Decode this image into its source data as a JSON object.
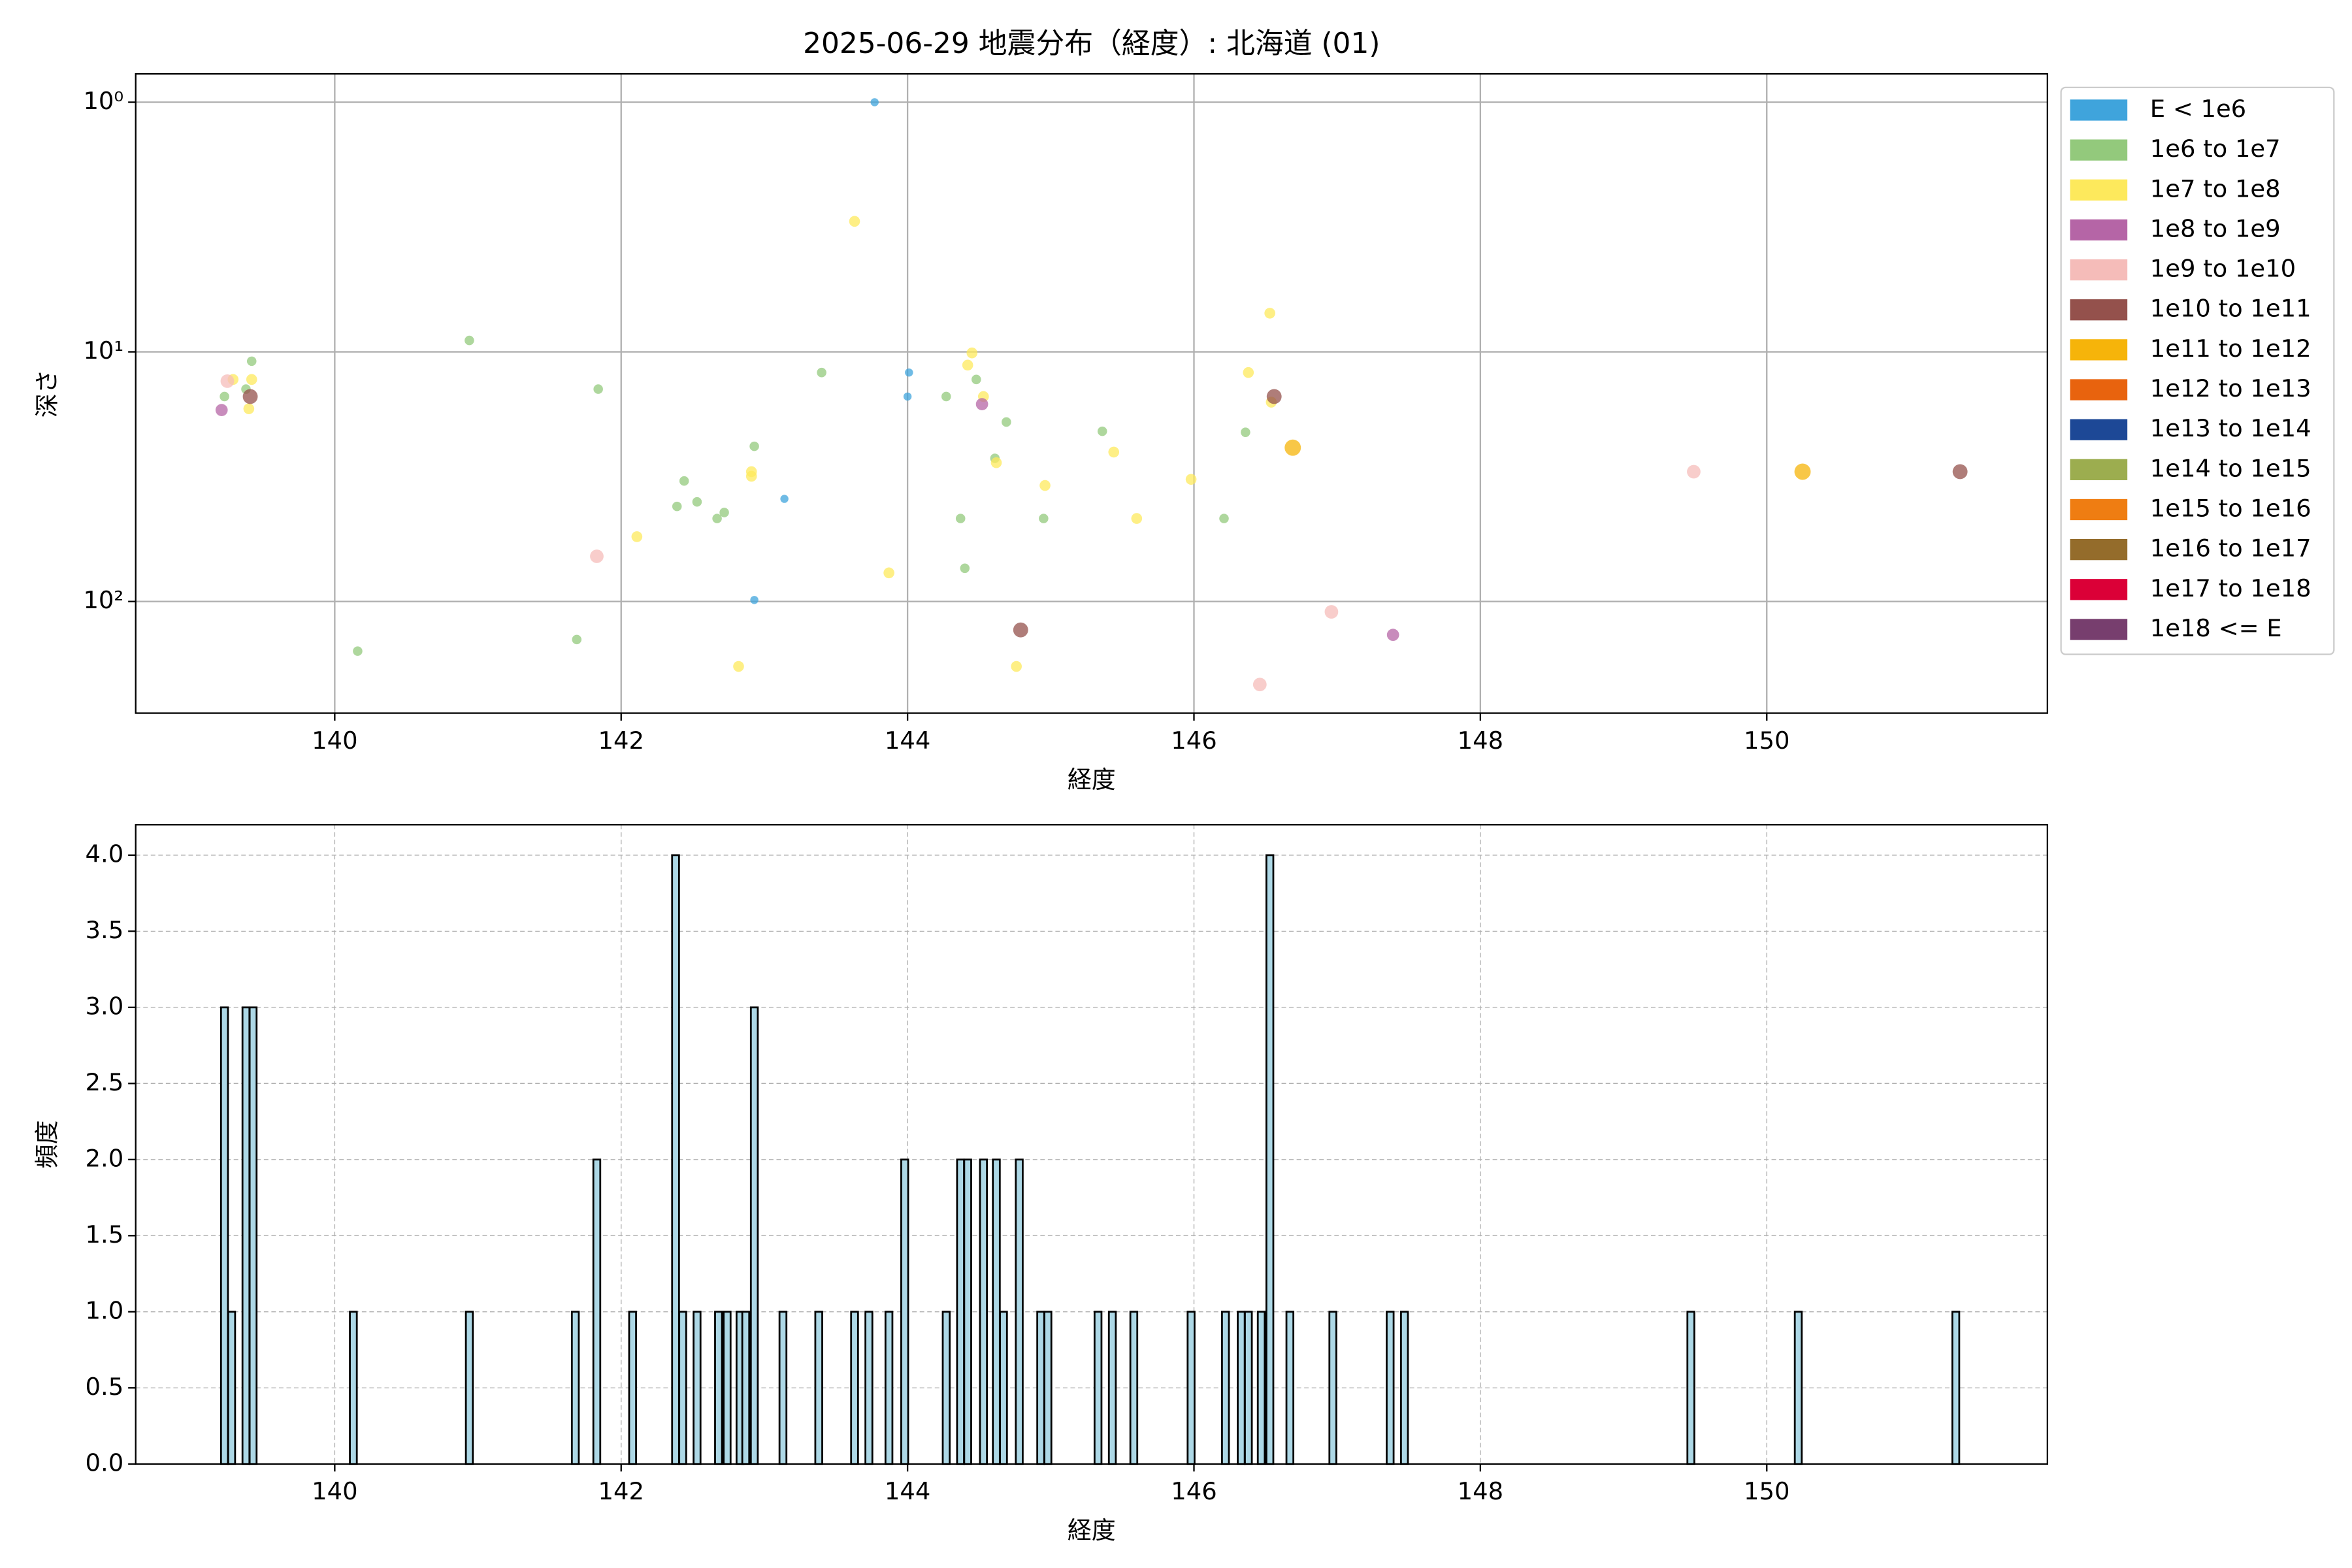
{
  "chart_data": [
    {
      "type": "scatter",
      "title": "2025-06-29 地震分布（経度）: 北海道 (01)",
      "xlabel": "経度",
      "ylabel": "深さ",
      "log_y": true,
      "grid": true,
      "grid_linestyle": "solid",
      "legend": "outside-right",
      "xlim": [
        138.61,
        151.96
      ],
      "xticks": [
        140,
        142,
        144,
        146,
        148,
        150
      ],
      "ylim": [
        280,
        0.77
      ],
      "yticks": [
        {
          "value": 1,
          "label": "10⁰"
        },
        {
          "value": 10,
          "label": "10¹"
        },
        {
          "value": 100,
          "label": "10²"
        }
      ],
      "series": [
        {
          "name": "E < 1e6",
          "color": "#3fa4dc",
          "x": [
            143.77,
            144.01,
            144.0,
            143.14,
            142.93
          ],
          "values": [
            1.0,
            12.1,
            15.1,
            38.8,
            98.6
          ]
        },
        {
          "name": "1e6 to 1e7",
          "color": "#93c97c",
          "x": [
            139.23,
            139.42,
            139.38,
            140.94,
            140.16,
            141.69,
            141.84,
            143.4,
            142.93,
            142.44,
            142.39,
            142.53,
            142.67,
            142.72,
            144.27,
            144.48,
            144.69,
            144.61,
            144.37,
            144.4,
            144.95,
            145.36,
            146.36,
            146.21
          ],
          "values": [
            15.1,
            10.9,
            14.1,
            9.0,
            158,
            142,
            14.1,
            12.1,
            23.9,
            32.9,
            41.6,
            39.9,
            46.5,
            44.0,
            15.1,
            12.9,
            19.1,
            26.7,
            46.5,
            73.6,
            46.5,
            20.8,
            21.0,
            46.5
          ]
        },
        {
          "name": "1e7 to 1e8",
          "color": "#fde95c",
          "x": [
            139.29,
            139.42,
            139.4,
            143.63,
            144.42,
            144.45,
            144.53,
            144.62,
            142.91,
            142.91,
            142.11,
            142.82,
            143.87,
            144.76,
            144.96,
            145.44,
            145.6,
            145.98,
            146.53,
            146.38,
            146.54
          ],
          "values": [
            12.9,
            12.9,
            16.9,
            3.0,
            11.3,
            10.1,
            15.1,
            27.8,
            30.2,
            31.5,
            55.0,
            182,
            76.8,
            182,
            34.3,
            25.2,
            46.5,
            32.4,
            7.0,
            12.1,
            15.9
          ]
        },
        {
          "name": "1e8 to 1e9",
          "color": "#b565a6",
          "x": [
            139.21,
            144.52,
            147.39
          ],
          "values": [
            17.1,
            16.2,
            136
          ]
        },
        {
          "name": "1e9 to 1e10",
          "color": "#f5bcb9",
          "x": [
            139.25,
            141.83,
            146.46,
            146.96,
            149.49
          ],
          "values": [
            13.1,
            65.9,
            215,
            110,
            30.2
          ]
        },
        {
          "name": "1e10 to 1e11",
          "color": "#94514c",
          "x": [
            139.41,
            146.56,
            144.79,
            151.35
          ],
          "values": [
            15.1,
            15.1,
            130,
            30.2
          ]
        },
        {
          "name": "1e11 to 1e12",
          "color": "#f6b40a",
          "x": [
            146.69,
            150.25
          ],
          "values": [
            24.2,
            30.2
          ]
        },
        {
          "name": "1e12 to 1e13",
          "color": "#e8630e",
          "x": [],
          "values": []
        },
        {
          "name": "1e13 to 1e14",
          "color": "#1d4896",
          "x": [],
          "values": []
        },
        {
          "name": "1e14 to 1e15",
          "color": "#9cad4f",
          "x": [],
          "values": []
        },
        {
          "name": "1e15 to 1e16",
          "color": "#ef7d12",
          "x": [],
          "values": []
        },
        {
          "name": "1e16 to 1e17",
          "color": "#946c2b",
          "x": [],
          "values": []
        },
        {
          "name": "1e17 to 1e18",
          "color": "#db0037",
          "x": [],
          "values": []
        },
        {
          "name": "1e18 <= E",
          "color": "#773e6e",
          "x": [],
          "values": []
        }
      ]
    },
    {
      "type": "bar",
      "xlabel": "経度",
      "ylabel": "頻度",
      "color": "#add8e6",
      "edgecolor": "#000000",
      "grid": true,
      "grid_linestyle": "dashed",
      "xlim": [
        138.61,
        151.96
      ],
      "xticks": [
        140,
        142,
        144,
        146,
        148,
        150
      ],
      "ylim": [
        0,
        4.2
      ],
      "yticks": [
        {
          "value": 0,
          "label": "0.0"
        },
        {
          "value": 0.5,
          "label": "0.5"
        },
        {
          "value": 1,
          "label": "1.0"
        },
        {
          "value": 1.5,
          "label": "1.5"
        },
        {
          "value": 2,
          "label": "2.0"
        },
        {
          "value": 2.5,
          "label": "2.5"
        },
        {
          "value": 3,
          "label": "3.0"
        },
        {
          "value": 3.5,
          "label": "3.5"
        },
        {
          "value": 4,
          "label": "4.0"
        }
      ],
      "x": [
        139.23,
        139.28,
        139.38,
        139.43,
        140.13,
        140.94,
        141.68,
        141.83,
        142.08,
        142.38,
        142.43,
        142.53,
        142.68,
        142.74,
        142.83,
        142.87,
        142.93,
        143.13,
        143.38,
        143.63,
        143.73,
        143.87,
        143.98,
        144.27,
        144.37,
        144.42,
        144.53,
        144.62,
        144.67,
        144.78,
        144.93,
        144.98,
        145.33,
        145.43,
        145.58,
        145.98,
        146.22,
        146.33,
        146.38,
        146.47,
        146.53,
        146.67,
        146.97,
        147.37,
        147.47,
        149.47,
        150.22,
        151.32
      ],
      "values": [
        3,
        1,
        3,
        3,
        1,
        1,
        1,
        2,
        1,
        4,
        1,
        1,
        1,
        1,
        1,
        1,
        3,
        1,
        1,
        1,
        1,
        1,
        2,
        1,
        2,
        2,
        2,
        2,
        1,
        2,
        1,
        1,
        1,
        1,
        1,
        1,
        1,
        1,
        1,
        1,
        4,
        1,
        1,
        1,
        1,
        1,
        1,
        1
      ]
    }
  ]
}
